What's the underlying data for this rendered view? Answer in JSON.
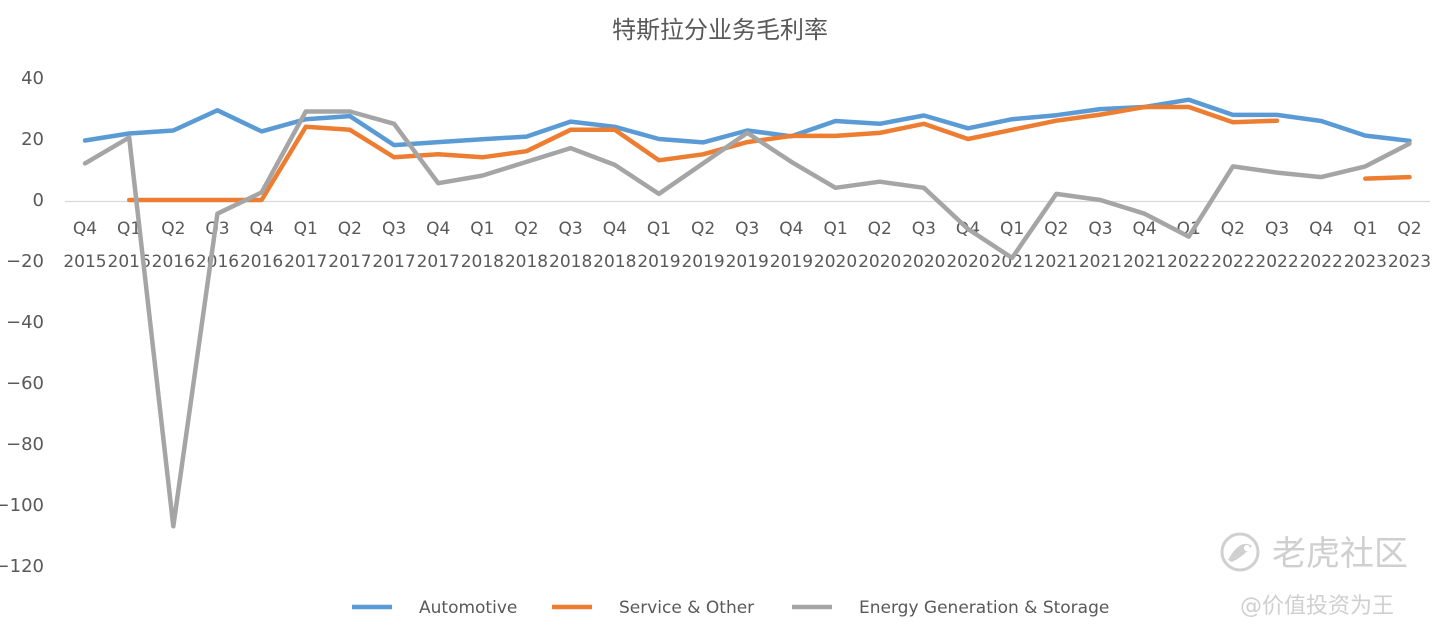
{
  "chart_data": {
    "type": "line",
    "title": "特斯拉分业务毛利率",
    "xlabel": "",
    "ylabel": "",
    "ylim": [
      -120,
      40
    ],
    "yticks": [
      40,
      20,
      0,
      -20,
      -40,
      -60,
      -80,
      -100,
      -120
    ],
    "ytick_labels": [
      "40",
      "20",
      "0",
      "−20",
      "−40",
      "−60",
      "−80",
      "−100",
      "−120"
    ],
    "grid": false,
    "legend_position": "bottom",
    "categories": [
      [
        "Q4",
        "2015"
      ],
      [
        "Q1",
        "2016"
      ],
      [
        "Q2",
        "2016"
      ],
      [
        "Q3",
        "2016"
      ],
      [
        "Q4",
        "2016"
      ],
      [
        "Q1",
        "2017"
      ],
      [
        "Q2",
        "2017"
      ],
      [
        "Q3",
        "2017"
      ],
      [
        "Q4",
        "2017"
      ],
      [
        "Q1",
        "2018"
      ],
      [
        "Q2",
        "2018"
      ],
      [
        "Q3",
        "2018"
      ],
      [
        "Q4",
        "2018"
      ],
      [
        "Q1",
        "2019"
      ],
      [
        "Q2",
        "2019"
      ],
      [
        "Q3",
        "2019"
      ],
      [
        "Q4",
        "2019"
      ],
      [
        "Q1",
        "2020"
      ],
      [
        "Q2",
        "2020"
      ],
      [
        "Q3",
        "2020"
      ],
      [
        "Q4",
        "2020"
      ],
      [
        "Q1",
        "2021"
      ],
      [
        "Q2",
        "2021"
      ],
      [
        "Q3",
        "2021"
      ],
      [
        "Q4",
        "2021"
      ],
      [
        "Q1",
        "2022"
      ],
      [
        "Q2",
        "2022"
      ],
      [
        "Q3",
        "2022"
      ],
      [
        "Q4",
        "2022"
      ],
      [
        "Q1",
        "2023"
      ],
      [
        "Q2",
        "2023"
      ]
    ],
    "series": [
      {
        "name": "Automotive",
        "color": "#5b9bd5",
        "values": [
          19.5,
          21.8,
          22.8,
          29.4,
          22.5,
          26.5,
          27.5,
          18.0,
          19.0,
          19.9,
          20.8,
          25.7,
          24.0,
          20.0,
          18.9,
          22.8,
          20.9,
          25.9,
          25.0,
          27.7,
          23.5,
          26.5,
          27.8,
          29.8,
          30.5,
          32.9,
          27.9,
          27.9,
          25.9,
          21.1,
          19.4
        ]
      },
      {
        "name": "Service & Other",
        "color": "#ed7d31",
        "values": [
          null,
          0.0,
          0.0,
          0.0,
          0.0,
          24.0,
          23.0,
          14.0,
          15.0,
          14.0,
          16.0,
          23.0,
          23.0,
          13.0,
          15.0,
          19.0,
          21.0,
          21.0,
          22.0,
          25.0,
          20.0,
          23.0,
          26.0,
          28.0,
          30.5,
          30.5,
          25.5,
          26.0,
          null,
          7.0,
          7.5
        ]
      },
      {
        "name": "Energy Generation & Storage",
        "color": "#a5a5a5",
        "values": [
          12.0,
          20.5,
          -107.0,
          -4.5,
          2.5,
          29.0,
          29.0,
          25.0,
          5.5,
          8.0,
          12.5,
          17.0,
          11.5,
          2.0,
          12.0,
          22.0,
          12.5,
          4.0,
          6.0,
          4.0,
          -9.5,
          -19.0,
          2.0,
          0.0,
          -4.5,
          -12.0,
          11.0,
          9.0,
          7.5,
          11.0,
          18.5
        ]
      }
    ]
  },
  "watermark": {
    "brand": "老虎社区",
    "handle": "@价值投资为王",
    "icon": "tiger-logo-icon"
  }
}
